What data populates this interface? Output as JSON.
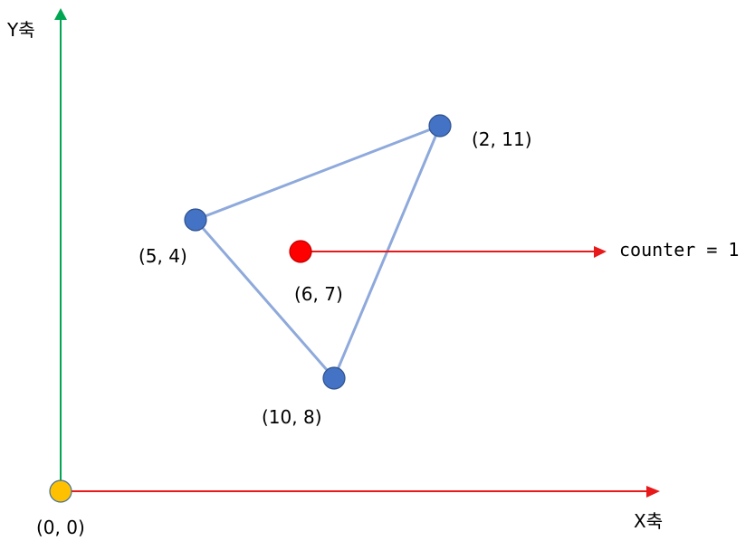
{
  "axes": {
    "x_label": "X축",
    "y_label": "Y축"
  },
  "origin": {
    "label": "(0, 0)",
    "color": "#FFC000"
  },
  "triangle": {
    "vertex_color": "#4472C4",
    "edge_color": "#8EA9DB",
    "vertices": [
      {
        "label": "(5, 4)"
      },
      {
        "label": "(2, 11)"
      },
      {
        "label": "(10, 8)"
      }
    ]
  },
  "test_point": {
    "label": "(6, 7)",
    "color": "#FF0000"
  },
  "ray": {
    "result_text": "counter = 1",
    "color": "#E8191A"
  },
  "colors": {
    "y_axis": "#00A651",
    "x_axis": "#E8191A"
  }
}
